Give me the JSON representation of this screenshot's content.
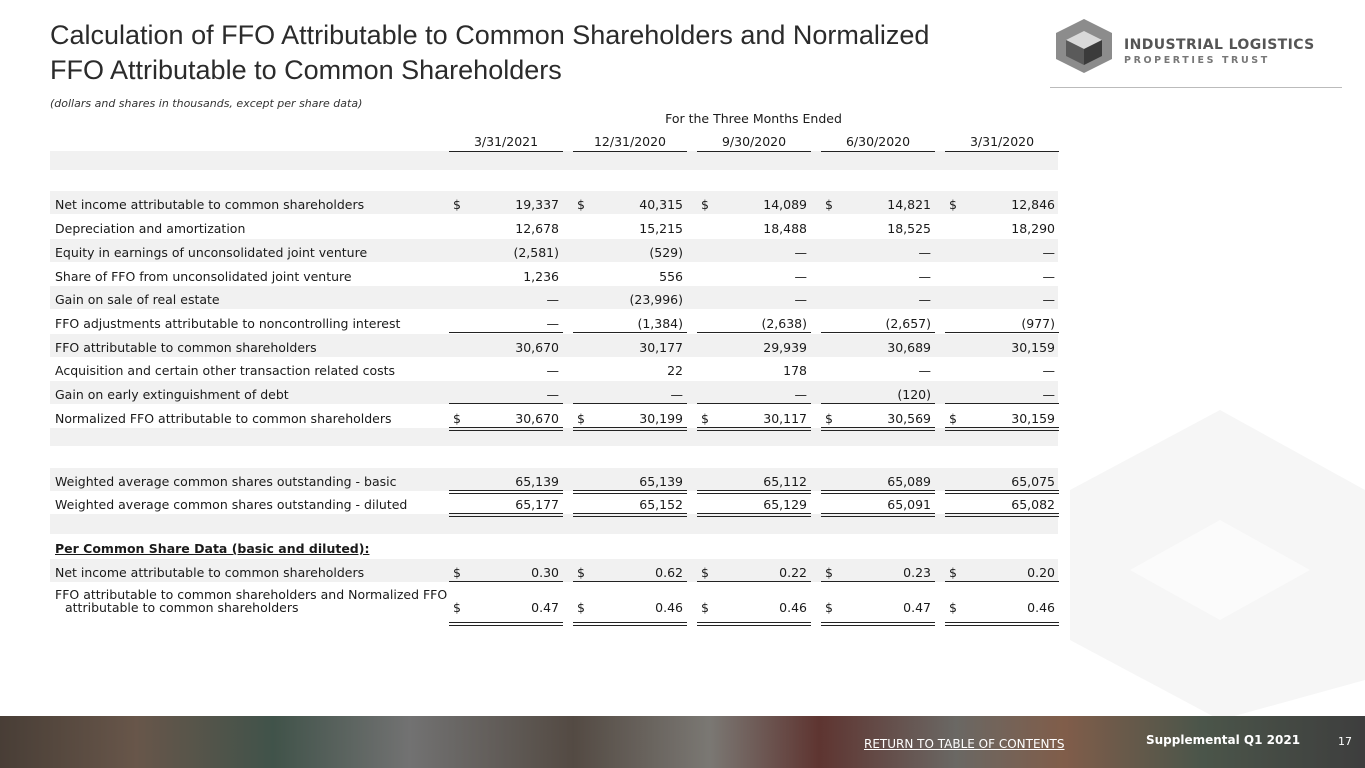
{
  "header": {
    "title_lines": [
      "Calculation of FFO Attributable to Common Shareholders and Normalized",
      "FFO Attributable to Common Shareholders"
    ],
    "logo": {
      "line1": "INDUSTRIAL LOGISTICS",
      "line2": "PROPERTIES TRUST"
    }
  },
  "note": "(dollars and shares in thousands, except per share data)",
  "table": {
    "period_header": "For the Three Months Ended",
    "currency_symbol": "$",
    "columns": [
      "3/31/2021",
      "12/31/2020",
      "9/30/2020",
      "6/30/2020",
      "3/31/2020"
    ],
    "rows": [
      {
        "label": "Net income attributable to common shareholders",
        "dollar": true,
        "values": [
          "19,337",
          "40,315",
          "14,089",
          "14,821",
          "12,846"
        ]
      },
      {
        "label": "Depreciation and amortization",
        "dollar": false,
        "values": [
          "12,678",
          "15,215",
          "18,488",
          "18,525",
          "18,290"
        ]
      },
      {
        "label": "Equity in earnings of unconsolidated joint venture",
        "dollar": false,
        "values": [
          "(2,581)",
          "(529)",
          "—",
          "—",
          "—"
        ]
      },
      {
        "label": "Share of FFO from unconsolidated joint venture",
        "dollar": false,
        "values": [
          "1,236",
          "556",
          "—",
          "—",
          "—"
        ]
      },
      {
        "label": "Gain on sale of real estate",
        "dollar": false,
        "values": [
          "—",
          "(23,996)",
          "—",
          "—",
          "—"
        ]
      },
      {
        "label": "FFO adjustments attributable to noncontrolling interest",
        "dollar": false,
        "values": [
          "—",
          "(1,384)",
          "(2,638)",
          "(2,657)",
          "(977)"
        ]
      },
      {
        "label": "FFO attributable to common shareholders",
        "dollar": false,
        "values": [
          "30,670",
          "30,177",
          "29,939",
          "30,689",
          "30,159"
        ]
      },
      {
        "label": "Acquisition and certain other transaction related costs",
        "dollar": false,
        "values": [
          "—",
          "22",
          "178",
          "—",
          "—"
        ]
      },
      {
        "label": "Gain on early extinguishment of debt",
        "dollar": false,
        "values": [
          "—",
          "—",
          "—",
          "(120)",
          "—"
        ]
      },
      {
        "label": "Normalized FFO attributable to common shareholders",
        "dollar": true,
        "values": [
          "30,670",
          "30,199",
          "30,117",
          "30,569",
          "30,159"
        ]
      },
      {
        "label": "Weighted average common shares outstanding - basic",
        "dollar": false,
        "values": [
          "65,139",
          "65,139",
          "65,112",
          "65,089",
          "65,075"
        ]
      },
      {
        "label": "Weighted average common shares outstanding - diluted",
        "dollar": false,
        "values": [
          "65,177",
          "65,152",
          "65,129",
          "65,091",
          "65,082"
        ]
      },
      {
        "label": "Per Common Share Data (basic and diluted):",
        "heading": true
      },
      {
        "label": "Net income attributable to common shareholders",
        "dollar": true,
        "values": [
          "0.30",
          "0.62",
          "0.22",
          "0.23",
          "0.20"
        ]
      },
      {
        "label": [
          "FFO attributable to common shareholders and Normalized FFO",
          "attributable to common shareholders"
        ],
        "dollar": true,
        "values": [
          "0.47",
          "0.46",
          "0.46",
          "0.47",
          "0.46"
        ]
      }
    ]
  },
  "footer": {
    "link": "RETURN TO TABLE OF CONTENTS",
    "supplemental": "Supplemental Q1 2021",
    "page": "17"
  }
}
